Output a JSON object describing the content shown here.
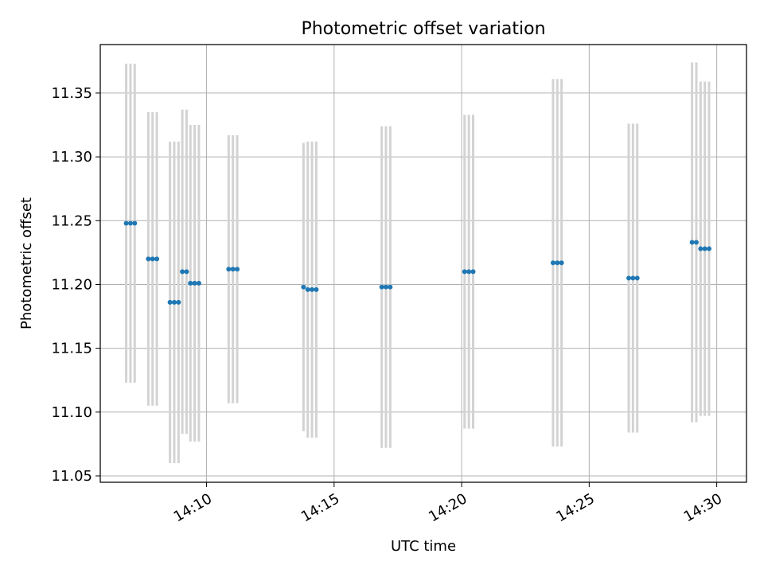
{
  "chart_data": {
    "type": "scatter",
    "title": "Photometric offset variation",
    "xlabel": "UTC time",
    "ylabel": "Photometric offset",
    "xlim": [
      "14:05:50",
      "14:31:10"
    ],
    "ylim": [
      11.045,
      11.388
    ],
    "grid": true,
    "x_ticks": [
      "14:10",
      "14:15",
      "14:20",
      "14:25",
      "14:30"
    ],
    "y_ticks": [
      "11.05",
      "11.10",
      "11.15",
      "11.20",
      "11.25",
      "11.30",
      "11.35"
    ],
    "series": [
      {
        "style": "points-with-errorbars",
        "point_color": "#1f77b4",
        "errorbar_color": "#d3d3d3",
        "points": [
          {
            "x": "14:06:51",
            "y": 11.248,
            "err": 0.125
          },
          {
            "x": "14:07:01",
            "y": 11.248,
            "err": 0.125
          },
          {
            "x": "14:07:11",
            "y": 11.248,
            "err": 0.125
          },
          {
            "x": "14:07:43",
            "y": 11.22,
            "err": 0.115
          },
          {
            "x": "14:07:53",
            "y": 11.22,
            "err": 0.115
          },
          {
            "x": "14:08:03",
            "y": 11.22,
            "err": 0.115
          },
          {
            "x": "14:08:34",
            "y": 11.186,
            "err": 0.126
          },
          {
            "x": "14:08:44",
            "y": 11.186,
            "err": 0.126
          },
          {
            "x": "14:08:54",
            "y": 11.186,
            "err": 0.126
          },
          {
            "x": "14:09:03",
            "y": 11.21,
            "err": 0.127
          },
          {
            "x": "14:09:13",
            "y": 11.21,
            "err": 0.127
          },
          {
            "x": "14:09:22",
            "y": 11.201,
            "err": 0.124
          },
          {
            "x": "14:09:32",
            "y": 11.201,
            "err": 0.124
          },
          {
            "x": "14:09:42",
            "y": 11.201,
            "err": 0.124
          },
          {
            "x": "14:10:52",
            "y": 11.212,
            "err": 0.105
          },
          {
            "x": "14:11:02",
            "y": 11.212,
            "err": 0.105
          },
          {
            "x": "14:11:12",
            "y": 11.212,
            "err": 0.105
          },
          {
            "x": "14:13:48",
            "y": 11.198,
            "err": 0.113
          },
          {
            "x": "14:13:58",
            "y": 11.196,
            "err": 0.116
          },
          {
            "x": "14:14:08",
            "y": 11.196,
            "err": 0.116
          },
          {
            "x": "14:14:18",
            "y": 11.196,
            "err": 0.116
          },
          {
            "x": "14:16:52",
            "y": 11.198,
            "err": 0.126
          },
          {
            "x": "14:17:02",
            "y": 11.198,
            "err": 0.126
          },
          {
            "x": "14:17:12",
            "y": 11.198,
            "err": 0.126
          },
          {
            "x": "14:20:07",
            "y": 11.21,
            "err": 0.123
          },
          {
            "x": "14:20:17",
            "y": 11.21,
            "err": 0.123
          },
          {
            "x": "14:20:27",
            "y": 11.21,
            "err": 0.123
          },
          {
            "x": "14:23:35",
            "y": 11.217,
            "err": 0.144
          },
          {
            "x": "14:23:45",
            "y": 11.217,
            "err": 0.144
          },
          {
            "x": "14:23:55",
            "y": 11.217,
            "err": 0.144
          },
          {
            "x": "14:26:33",
            "y": 11.205,
            "err": 0.121
          },
          {
            "x": "14:26:43",
            "y": 11.205,
            "err": 0.121
          },
          {
            "x": "14:26:53",
            "y": 11.205,
            "err": 0.121
          },
          {
            "x": "14:29:02",
            "y": 11.233,
            "err": 0.141
          },
          {
            "x": "14:29:12",
            "y": 11.233,
            "err": 0.141
          },
          {
            "x": "14:29:22",
            "y": 11.228,
            "err": 0.131
          },
          {
            "x": "14:29:32",
            "y": 11.228,
            "err": 0.131
          },
          {
            "x": "14:29:42",
            "y": 11.228,
            "err": 0.131
          }
        ]
      }
    ]
  }
}
